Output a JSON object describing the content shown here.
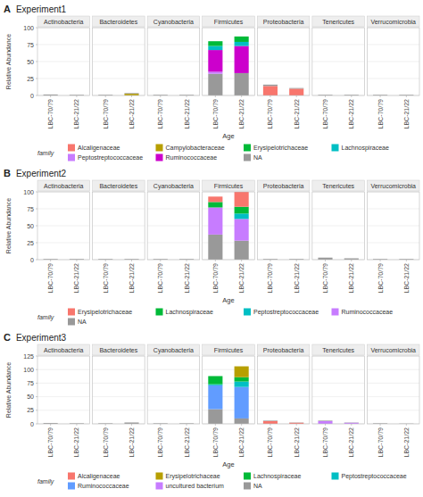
{
  "chart_data": [
    {
      "type": "bar",
      "stacked": true,
      "label": "A",
      "title": "Experiment1",
      "ylabel": "Relative Abundance",
      "xlabel": "Age",
      "legend_title": "family",
      "ylim": [
        0,
        100
      ],
      "yticks": [
        0,
        25,
        50,
        75,
        100
      ],
      "grid": true,
      "series": [
        {
          "name": "Alcaligenaceae",
          "color": "#F8766D"
        },
        {
          "name": "Campylobacteraceae",
          "color": "#B79F00"
        },
        {
          "name": "Erysipelotrichaceae",
          "color": "#00BA38"
        },
        {
          "name": "Lachnospiraceae",
          "color": "#00BFC4"
        },
        {
          "name": "Peptostreptococcaceae",
          "color": "#C77CFF"
        },
        {
          "name": "Ruminococcaceae",
          "color": "#CC00CC"
        },
        {
          "name": "NA",
          "color": "#999999"
        }
      ],
      "panels": [
        {
          "title": "Actinobacteria",
          "categories": [
            "LBC-70/79",
            "LBC-21/22"
          ],
          "series": [
            {
              "name": "NA",
              "values": [
                1.5,
                1.0
              ]
            }
          ]
        },
        {
          "title": "Bacteroidetes",
          "categories": [
            "LBC-70/79",
            "LBC-21/22"
          ],
          "series": [
            {
              "name": "Campylobacteraceae",
              "values": [
                null,
                2.5
              ]
            },
            {
              "name": "NA",
              "values": [
                1.0,
                1.0
              ]
            }
          ]
        },
        {
          "title": "Cyanobacteria",
          "categories": [
            "LBC-70/79",
            "LBC-21/22"
          ],
          "series": [
            {
              "name": "NA",
              "values": [
                1.0,
                1.0
              ]
            }
          ]
        },
        {
          "title": "Firmicutes",
          "categories": [
            "LBC-70/79",
            "LBC-21/22"
          ],
          "series": [
            {
              "name": "NA",
              "values": [
                32,
                33
              ]
            },
            {
              "name": "Peptostreptococcaceae",
              "values": [
                3,
                null
              ]
            },
            {
              "name": "Ruminococcaceae",
              "values": [
                32,
                40
              ]
            },
            {
              "name": "Lachnospiraceae",
              "values": [
                6,
                6
              ]
            },
            {
              "name": "Erysipelotrichaceae",
              "values": [
                7,
                8
              ]
            }
          ]
        },
        {
          "title": "Proteobacteria",
          "categories": [
            "LBC-70/79",
            "LBC-21/22"
          ],
          "series": [
            {
              "name": "Alcaligenaceae",
              "values": [
                14,
                10
              ]
            },
            {
              "name": "NA",
              "values": [
                2,
                1
              ]
            }
          ]
        },
        {
          "title": "Tenericutes",
          "categories": [
            "LBC-70/79",
            "LBC-21/22"
          ],
          "series": [
            {
              "name": "NA",
              "values": [
                1.0,
                1.0
              ]
            }
          ]
        },
        {
          "title": "Verrucomicrobia",
          "categories": [
            "LBC-70/79",
            "LBC-21/22"
          ],
          "series": [
            {
              "name": "NA",
              "values": [
                1.0,
                1.0
              ]
            }
          ]
        }
      ]
    },
    {
      "type": "bar",
      "stacked": true,
      "label": "B",
      "title": "Experiment2",
      "ylabel": "Relative Abundance",
      "xlabel": "Age",
      "legend_title": "family",
      "ylim": [
        0,
        100
      ],
      "yticks": [
        0,
        25,
        50,
        75,
        100
      ],
      "grid": true,
      "series": [
        {
          "name": "Erysipelotrichaceae",
          "color": "#F8766D"
        },
        {
          "name": "Lachnospiraceae",
          "color": "#00BA38"
        },
        {
          "name": "Peptostreptococcaceae",
          "color": "#00BFC4"
        },
        {
          "name": "Ruminococcaceae",
          "color": "#C77CFF"
        },
        {
          "name": "NA",
          "color": "#999999"
        }
      ],
      "panels": [
        {
          "title": "Actinobacteria",
          "categories": [
            "LBC-70/79",
            "LBC-21/22"
          ],
          "series": [
            {
              "name": "NA",
              "values": [
                1.0,
                1.0
              ]
            }
          ]
        },
        {
          "title": "Bacteroidetes",
          "categories": [
            "LBC-70/79",
            "LBC-21/22"
          ],
          "series": [
            {
              "name": "NA",
              "values": [
                1.0,
                1.0
              ]
            }
          ]
        },
        {
          "title": "Cyanobacteria",
          "categories": [
            "LBC-70/79",
            "LBC-21/22"
          ],
          "series": [
            {
              "name": "NA",
              "values": [
                1.0,
                1.0
              ]
            }
          ]
        },
        {
          "title": "Firmicutes",
          "categories": [
            "LBC-70/79",
            "LBC-21/22"
          ],
          "series": [
            {
              "name": "NA",
              "values": [
                37,
                28
              ]
            },
            {
              "name": "Ruminococcaceae",
              "values": [
                40,
                32
              ]
            },
            {
              "name": "Peptostreptococcaceae",
              "values": [
                null,
                8
              ]
            },
            {
              "name": "Lachnospiraceae",
              "values": [
                8,
                10
              ]
            },
            {
              "name": "Erysipelotrichaceae",
              "values": [
                8,
                22
              ]
            }
          ]
        },
        {
          "title": "Proteobacteria",
          "categories": [
            "LBC-70/79",
            "LBC-21/22"
          ],
          "series": [
            {
              "name": "NA",
              "values": [
                1.0,
                1.0
              ]
            }
          ]
        },
        {
          "title": "Tenericutes",
          "categories": [
            "LBC-70/79",
            "LBC-21/22"
          ],
          "series": [
            {
              "name": "NA",
              "values": [
                3,
                2
              ]
            }
          ]
        },
        {
          "title": "Verrucomicrobia",
          "categories": [
            "LBC-70/79",
            "LBC-21/22"
          ],
          "series": [
            {
              "name": "NA",
              "values": [
                1.0,
                1.0
              ]
            }
          ]
        }
      ]
    },
    {
      "type": "bar",
      "stacked": true,
      "label": "C",
      "title": "Experiment3",
      "ylabel": "Relative Abundance",
      "xlabel": "Age",
      "legend_title": "family",
      "ylim": [
        0,
        125
      ],
      "yticks": [
        0,
        25,
        50,
        75,
        100,
        125
      ],
      "grid": true,
      "series": [
        {
          "name": "Alcaligenaceae",
          "color": "#F8766D"
        },
        {
          "name": "Erysipelotrichaceae",
          "color": "#B79F00"
        },
        {
          "name": "Lachnospiraceae",
          "color": "#00BA38"
        },
        {
          "name": "Peptostreptococcaceae",
          "color": "#00BFC4"
        },
        {
          "name": "Ruminococcaceae",
          "color": "#619CFF"
        },
        {
          "name": "uncultured bacterium",
          "color": "#C77CFF"
        },
        {
          "name": "NA",
          "color": "#999999"
        }
      ],
      "panels": [
        {
          "title": "Actinobacteria",
          "categories": [
            "LBC-70/79",
            "LBC-21/22"
          ],
          "series": [
            {
              "name": "NA",
              "values": [
                1.5,
                1.0
              ]
            }
          ]
        },
        {
          "title": "Bacteroidetes",
          "categories": [
            "LBC-70/79",
            "LBC-21/22"
          ],
          "series": [
            {
              "name": "NA",
              "values": [
                1.0,
                2.5
              ]
            }
          ]
        },
        {
          "title": "Cyanobacteria",
          "categories": [
            "LBC-70/79",
            "LBC-21/22"
          ],
          "series": [
            {
              "name": "NA",
              "values": [
                1.0,
                1.0
              ]
            }
          ]
        },
        {
          "title": "Firmicutes",
          "categories": [
            "LBC-70/79",
            "LBC-21/22"
          ],
          "series": [
            {
              "name": "NA",
              "values": [
                27,
                10
              ]
            },
            {
              "name": "Ruminococcaceae",
              "values": [
                44,
                58
              ]
            },
            {
              "name": "Peptostreptococcaceae",
              "values": [
                2,
                10
              ]
            },
            {
              "name": "Lachnospiraceae",
              "values": [
                15,
                8
              ]
            },
            {
              "name": "Erysipelotrichaceae",
              "values": [
                null,
                20
              ]
            }
          ]
        },
        {
          "title": "Proteobacteria",
          "categories": [
            "LBC-70/79",
            "LBC-21/22"
          ],
          "series": [
            {
              "name": "Alcaligenaceae",
              "values": [
                5,
                2
              ]
            },
            {
              "name": "NA",
              "values": [
                1,
                0.5
              ]
            }
          ]
        },
        {
          "title": "Tenericutes",
          "categories": [
            "LBC-70/79",
            "LBC-21/22"
          ],
          "series": [
            {
              "name": "uncultured bacterium",
              "values": [
                5,
                2
              ]
            },
            {
              "name": "NA",
              "values": [
                1,
                0.5
              ]
            }
          ]
        },
        {
          "title": "Verrucomicrobia",
          "categories": [
            "LBC-70/79",
            "LBC-21/22"
          ],
          "series": [
            {
              "name": "NA",
              "values": [
                1.0,
                0.5
              ]
            }
          ]
        }
      ]
    }
  ]
}
